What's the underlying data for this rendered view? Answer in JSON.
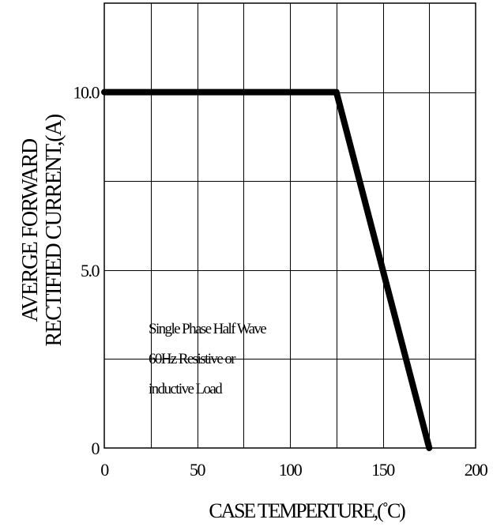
{
  "chart_data": {
    "type": "line",
    "title": "",
    "xlabel": "CASE TEMPERTURE,(˚C)",
    "ylabel_lines": [
      "AVERGE FORWARD",
      "RECTIFIED CURRENT,(A)"
    ],
    "xlim": [
      0,
      200
    ],
    "ylim": [
      0,
      12.5
    ],
    "x_ticks": [
      {
        "value": 0,
        "label": "0"
      },
      {
        "value": 50,
        "label": "50"
      },
      {
        "value": 100,
        "label": "100"
      },
      {
        "value": 150,
        "label": "150"
      },
      {
        "value": 200,
        "label": "200"
      }
    ],
    "y_ticks": [
      {
        "value": 0,
        "label": "0"
      },
      {
        "value": 5,
        "label": "5.0"
      },
      {
        "value": 10,
        "label": "10.0"
      }
    ],
    "grid": true,
    "grid_x_step": 25,
    "grid_y_step": 2.5,
    "series": [
      {
        "x": [
          0,
          125,
          175
        ],
        "y": [
          10,
          10,
          0
        ]
      }
    ],
    "annotation_lines": [
      "Single Phase Half Wave",
      "60Hz Resistive or",
      "inductive Load"
    ],
    "colors": {
      "line": "#000000",
      "grid": "#000000",
      "background": "#ffffff"
    }
  }
}
